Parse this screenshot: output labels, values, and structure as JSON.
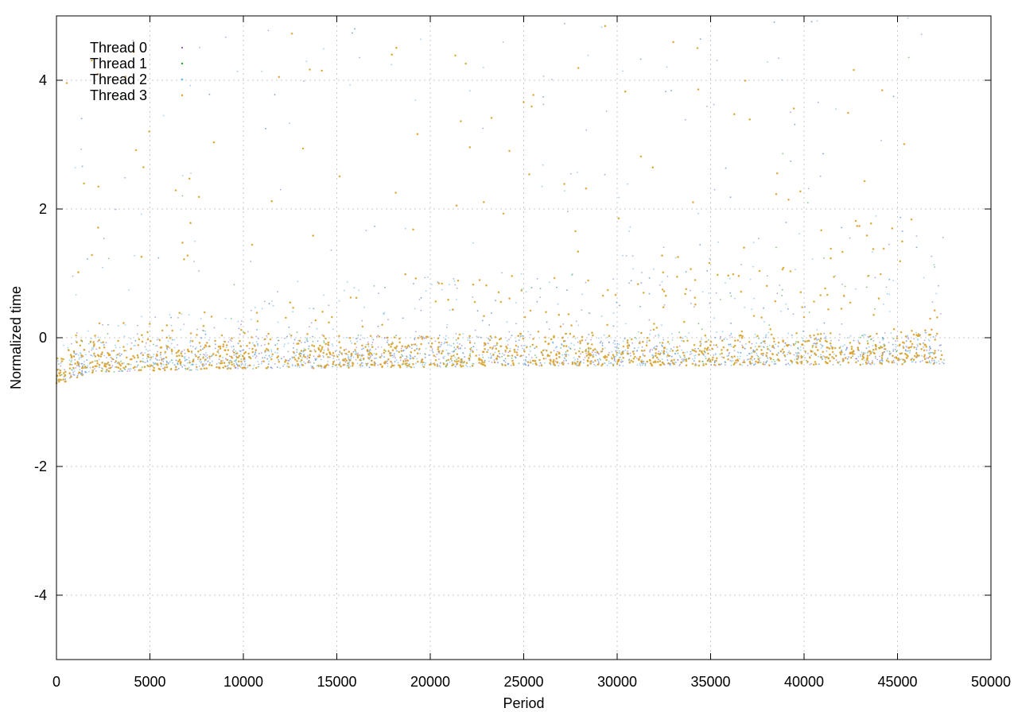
{
  "chart_data": {
    "type": "scatter",
    "title": "",
    "xlabel": "Period",
    "ylabel": "Normalized time",
    "xlim": [
      0,
      50000
    ],
    "ylim": [
      -5,
      5
    ],
    "x_ticks": [
      0,
      5000,
      10000,
      15000,
      20000,
      25000,
      30000,
      35000,
      40000,
      45000,
      50000
    ],
    "y_ticks": [
      -4,
      -2,
      0,
      2,
      4
    ],
    "grid": true,
    "legend_position": "top-left",
    "series": [
      {
        "name": "Thread 0",
        "color": "#9467bd",
        "marker": "dot"
      },
      {
        "name": "Thread 1",
        "color": "#2ca02c",
        "marker": "dot"
      },
      {
        "name": "Thread 2",
        "color": "#5ab4e5",
        "marker": "dot"
      },
      {
        "name": "Thread 3",
        "color": "#e6a020",
        "marker": "dot"
      }
    ],
    "data_extent": {
      "x_max": 47500
    },
    "baseline_profile": {
      "x": [
        0,
        2000,
        5000,
        10000,
        15000,
        20000,
        25000,
        30000,
        35000,
        40000,
        45000,
        47500
      ],
      "median_y": [
        -0.7,
        -0.45,
        -0.42,
        -0.38,
        -0.35,
        -0.32,
        -0.28,
        -0.27,
        -0.26,
        -0.24,
        -0.22,
        -0.2
      ],
      "lower_y": [
        -0.75,
        -0.6,
        -0.58,
        -0.56,
        -0.55,
        -0.55,
        -0.55,
        -0.55,
        -0.55,
        -0.55,
        -0.55,
        -0.55
      ]
    },
    "outliers_above_ylim": true
  }
}
